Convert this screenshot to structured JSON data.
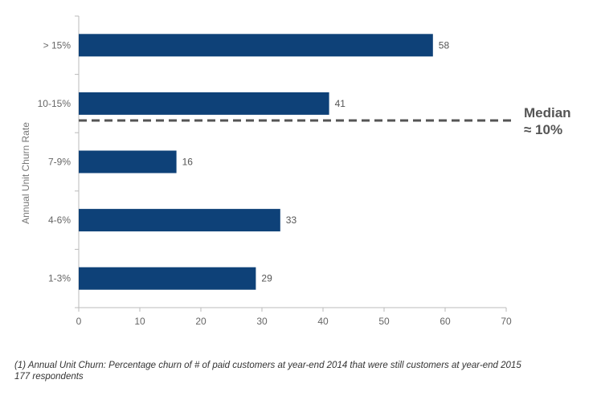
{
  "chart_data": {
    "type": "bar",
    "orientation": "horizontal",
    "categories": [
      "> 15%",
      "10-15%",
      "7-9%",
      "4-6%",
      "1-3%"
    ],
    "values": [
      58,
      41,
      16,
      33,
      29
    ],
    "ylabel": "Annual Unit Churn Rate",
    "xlim": [
      0,
      70
    ],
    "xticks": [
      0,
      10,
      20,
      30,
      40,
      50,
      60,
      70
    ],
    "grid": false,
    "bar_color": "#0e4178",
    "annotation": {
      "text_line1": "Median",
      "text_line2": "≈ 10%",
      "color": "#555555"
    }
  },
  "footnote": {
    "line1": "(1) Annual Unit Churn: Percentage churn of # of paid customers at year-end 2014 that were still customers at year-end 2015",
    "line2": "177 respondents"
  }
}
